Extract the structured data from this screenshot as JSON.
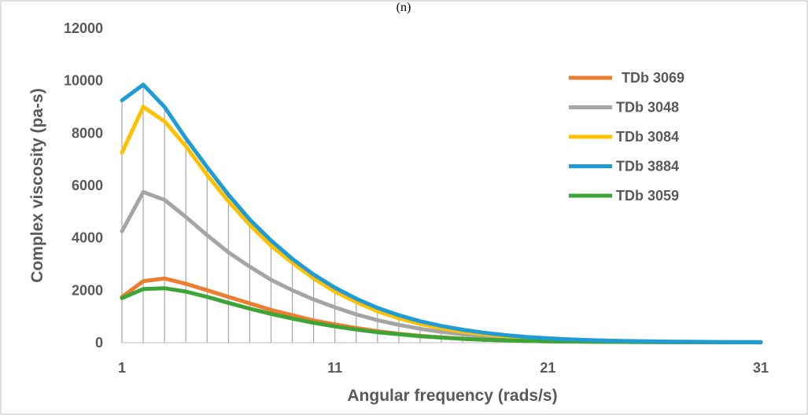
{
  "panel_label": "(n)",
  "chart_data": {
    "type": "line",
    "title": "",
    "xlabel": "Angular frequency (rads/s)",
    "ylabel": "Complex viscosity (pa-s)",
    "xlim": [
      1,
      31
    ],
    "ylim": [
      0,
      12000
    ],
    "x_ticks": [
      "1",
      "11",
      "21",
      "31"
    ],
    "y_ticks": [
      "0",
      "2000",
      "4000",
      "6000",
      "8000",
      "10000",
      "12000"
    ],
    "grid": "vertical drop lines at each data point",
    "legend_position": "right",
    "x": [
      1,
      2,
      3,
      4,
      5,
      6,
      7,
      8,
      9,
      10,
      11,
      12,
      13,
      14,
      15,
      16,
      17,
      18,
      19,
      20,
      21,
      22,
      23,
      24,
      25,
      26,
      27,
      28,
      29,
      30,
      31
    ],
    "series": [
      {
        "name": "TDb 3069",
        "color": "#ED7D31",
        "values": [
          1750,
          2350,
          2450,
          2250,
          2000,
          1750,
          1500,
          1250,
          1050,
          850,
          700,
          560,
          440,
          340,
          260,
          200,
          150,
          115,
          90,
          70,
          55,
          45,
          38,
          32,
          27,
          23,
          20,
          18,
          16,
          14,
          13
        ]
      },
      {
        "name": "TDb 3048",
        "color": "#A5A5A5",
        "values": [
          4250,
          5750,
          5450,
          4800,
          4100,
          3450,
          2900,
          2400,
          2000,
          1650,
          1350,
          1080,
          860,
          680,
          530,
          410,
          320,
          250,
          195,
          150,
          115,
          90,
          72,
          58,
          48,
          40,
          34,
          29,
          25,
          22,
          20
        ]
      },
      {
        "name": "TDb 3084",
        "color": "#FFC000",
        "values": [
          7250,
          9000,
          8450,
          7500,
          6400,
          5400,
          4500,
          3700,
          3050,
          2450,
          1950,
          1550,
          1200,
          930,
          720,
          550,
          420,
          320,
          245,
          185,
          140,
          108,
          84,
          66,
          53,
          43,
          36,
          30,
          26,
          23,
          21
        ]
      },
      {
        "name": "TDb 3884",
        "color": "#1F9BD7",
        "values": [
          9250,
          9850,
          9000,
          7800,
          6700,
          5650,
          4700,
          3900,
          3200,
          2600,
          2100,
          1680,
          1330,
          1050,
          820,
          640,
          495,
          380,
          290,
          220,
          168,
          128,
          98,
          76,
          60,
          48,
          40,
          33,
          28,
          25,
          22
        ]
      },
      {
        "name": "TDb 3059",
        "color": "#3DA535",
        "values": [
          1700,
          2050,
          2080,
          1950,
          1750,
          1520,
          1300,
          1100,
          920,
          760,
          620,
          500,
          400,
          320,
          250,
          195,
          150,
          115,
          90,
          70,
          55,
          45,
          37,
          31,
          26,
          22,
          19,
          17,
          15,
          13,
          12
        ]
      }
    ]
  }
}
